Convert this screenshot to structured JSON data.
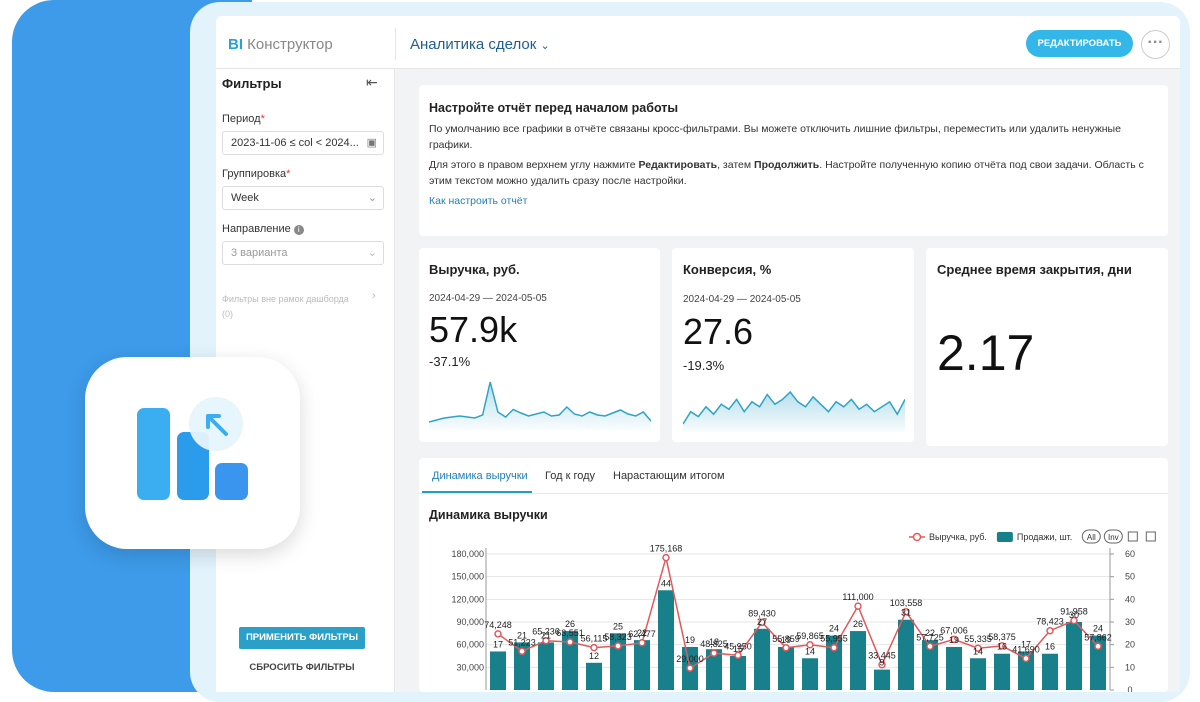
{
  "header": {
    "logo_bi": "BI",
    "logo": "Конструктор",
    "report": "Аналитика сделок",
    "edit_button": "РЕДАКТИРОВАТЬ"
  },
  "sidebar": {
    "title": "Фильтры",
    "filters": [
      {
        "label": "Период",
        "required": "*",
        "value": "2023-11-06 ≤ col < 2024..."
      },
      {
        "label": "Группировка",
        "required": "*",
        "value": "Week"
      },
      {
        "label": "Направление",
        "value": "3 варианта"
      }
    ],
    "outside": "Фильтры вне рамок дашборда",
    "outside_count": "(0)",
    "apply": "ПРИМЕНИТЬ ФИЛЬТРЫ",
    "reset": "СБРОСИТЬ ФИЛЬТРЫ"
  },
  "info": {
    "title": "Настройте отчёт перед началом работы",
    "p1": "По умолчанию все графики в отчёте связаны кросс-фильтрами. Вы можете отключить лишние фильтры, переместить или удалить ненужные графики.",
    "p2": [
      "Для этого в правом верхнем углу нажмите ",
      "Редактировать",
      ", затем ",
      "Продолжить",
      ". Настройте полученную копию отчёта под свои задачи. Область с этим текстом можно удалить сразу после настройки."
    ],
    "link": "Как настроить отчёт"
  },
  "kpis": [
    {
      "title": "Выручка, руб.",
      "period": "2024-04-29 — 2024-05-05",
      "value": "57.9k",
      "change": "-37.1%",
      "sparkline": [
        10,
        14,
        18,
        20,
        22,
        20,
        18,
        24,
        90,
        30,
        20,
        35,
        28,
        22,
        26,
        30,
        22,
        24,
        40,
        26,
        22,
        30,
        24,
        22,
        28,
        34,
        26,
        22,
        30,
        12
      ]
    },
    {
      "title": "Конверсия, %",
      "period": "2024-04-29 — 2024-05-05",
      "value": "27.6",
      "change": "-19.3%",
      "sparkline": [
        20,
        30,
        26,
        34,
        28,
        36,
        32,
        40,
        30,
        38,
        34,
        44,
        36,
        40,
        46,
        38,
        34,
        42,
        36,
        30,
        38,
        34,
        40,
        32,
        36,
        30,
        34,
        38,
        28,
        40
      ]
    },
    {
      "title": "Среднее время закрытия, дни",
      "value": "2.17"
    }
  ],
  "tabs": [
    "Динамика выручки",
    "Год к году",
    "Нарастающим итогом"
  ],
  "chart_data": {
    "type": "combo",
    "title": "Динамика выручки",
    "legend": "top-right",
    "legend_buttons": [
      "All",
      "Inv"
    ],
    "grid": true,
    "ylim": [
      0,
      180000
    ],
    "yticks": [
      {
        "value": 30000,
        "label": "30,000"
      },
      {
        "value": 60000,
        "label": "60,000"
      },
      {
        "value": 90000,
        "label": "90,000"
      },
      {
        "value": 120000,
        "label": "120,000"
      },
      {
        "value": 150000,
        "label": "150,000"
      },
      {
        "value": 180000,
        "label": "180,000"
      }
    ],
    "y2lim": [
      0,
      60
    ],
    "y2ticks": [
      0,
      10,
      20,
      30,
      40,
      50,
      60
    ],
    "series": [
      {
        "name": "Выручка, руб.",
        "type": "line",
        "color": "#e05a5a",
        "values": [
          74248,
          51223,
          65236,
          63551,
          56115,
          58323,
          62477,
          175168,
          29000,
          48825,
          45950,
          89430,
          55859,
          59865,
          55955,
          111000,
          33445,
          103558,
          57725,
          67006,
          55335,
          58375,
          41690,
          78423,
          91958,
          57862
        ],
        "value_labels": [
          "74,248",
          "51,223",
          "65,236",
          "63,551",
          "56,115",
          "58,323",
          "62,477",
          "175,168",
          "29,000",
          "48,825",
          "45,950",
          "89,430",
          "55,859",
          "59,865",
          "55,955",
          "111,000",
          "33,445",
          "103,558",
          "57,725",
          "67,006",
          "55,335",
          "58,375",
          "41,690",
          "78,423",
          "91,958",
          "57,862"
        ]
      },
      {
        "name": "Продажи, шт.",
        "type": "bar",
        "axis": "y2",
        "color": "#17808a",
        "values": [
          17,
          21,
          21,
          26,
          12,
          25,
          22,
          44,
          19,
          18,
          15,
          27,
          19,
          14,
          24,
          26,
          9,
          31,
          22,
          19,
          14,
          16,
          17,
          16,
          30,
          24
        ]
      }
    ]
  }
}
